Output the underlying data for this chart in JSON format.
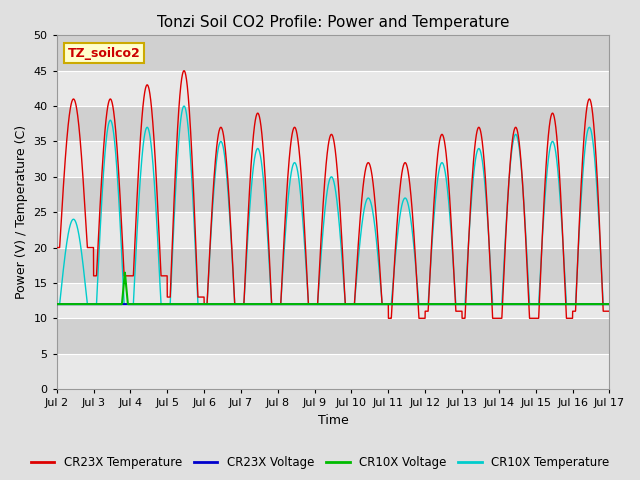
{
  "title": "Tonzi Soil CO2 Profile: Power and Temperature",
  "xlabel": "Time",
  "ylabel": "Power (V) / Temperature (C)",
  "ylim": [
    0,
    50
  ],
  "yticks": [
    0,
    5,
    10,
    15,
    20,
    25,
    30,
    35,
    40,
    45,
    50
  ],
  "xlim_days": [
    2,
    17
  ],
  "xtick_labels": [
    "Jul 2",
    "Jul 3",
    "Jul 4",
    "Jul 5",
    "Jul 6",
    "Jul 7",
    "Jul 8",
    "Jul 9",
    "Jul 10",
    "Jul 11",
    "Jul 12",
    "Jul 13",
    "Jul 14",
    "Jul 15",
    "Jul 16",
    "Jul 17"
  ],
  "xtick_positions": [
    2,
    3,
    4,
    5,
    6,
    7,
    8,
    9,
    10,
    11,
    12,
    13,
    14,
    15,
    16,
    17
  ],
  "cr23x_temp_color": "#dd0000",
  "cr23x_volt_color": "#0000cc",
  "cr10x_volt_color": "#00bb00",
  "cr10x_temp_color": "#00cccc",
  "voltage_level": 12.0,
  "background_color": "#e0e0e0",
  "plot_bg_light": "#e8e8e8",
  "plot_bg_dark": "#d0d0d0",
  "grid_color": "#ffffff",
  "annotation_text": "TZ_soilco2",
  "annotation_bg": "#ffffcc",
  "annotation_border": "#ccaa00",
  "legend_entries": [
    "CR23X Temperature",
    "CR23X Voltage",
    "CR10X Voltage",
    "CR10X Temperature"
  ],
  "title_fontsize": 11,
  "axis_label_fontsize": 9,
  "tick_fontsize": 8,
  "cr23x_peaks": [
    41,
    41,
    43,
    45,
    37,
    39,
    37,
    36,
    32,
    32,
    36,
    37,
    37,
    39,
    41
  ],
  "cr23x_mins": [
    20,
    16,
    16,
    13,
    12,
    12,
    12,
    12,
    12,
    10,
    11,
    10,
    10,
    10,
    11
  ],
  "cr10x_peaks": [
    24,
    38,
    37,
    40,
    35,
    34,
    32,
    30,
    27,
    27,
    32,
    34,
    36,
    35,
    37
  ],
  "cr10x_mins": [
    12,
    12,
    12,
    12,
    12,
    12,
    12,
    12,
    12,
    12,
    12,
    12,
    12,
    12,
    12
  ],
  "figsize": [
    6.4,
    4.8
  ],
  "dpi": 100
}
